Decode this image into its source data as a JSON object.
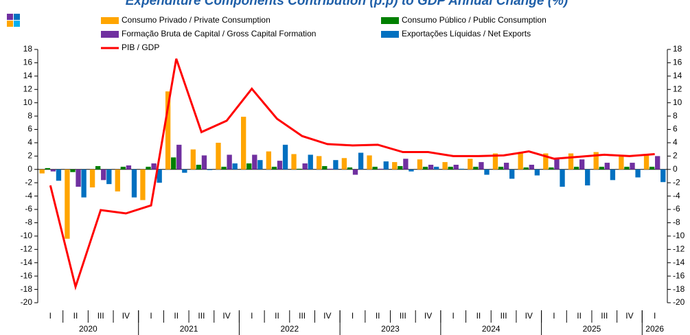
{
  "chart_data": {
    "type": "bar",
    "title": "Expenditure Components Contribution (p.p) to GDP Annual Change (%)",
    "categories": [
      "I",
      "II",
      "III",
      "IV",
      "I",
      "II",
      "III",
      "IV",
      "I",
      "II",
      "III",
      "IV",
      "I",
      "II",
      "III",
      "IV",
      "I",
      "II",
      "III",
      "IV",
      "I",
      "II",
      "III",
      "IV",
      "I"
    ],
    "years": [
      "2020",
      "2021",
      "2022",
      "2023",
      "2024",
      "2025",
      "2026"
    ],
    "series": [
      {
        "name": "Consumo Privado / Private Consumption",
        "color": "#ffa500",
        "values": [
          -0.6,
          -10.4,
          -2.7,
          -3.3,
          -4.6,
          11.7,
          3.0,
          4.0,
          7.9,
          2.7,
          2.3,
          2.0,
          1.7,
          2.1,
          1.1,
          1.5,
          1.1,
          1.6,
          2.4,
          2.5,
          2.4,
          2.4,
          2.6,
          2.1,
          2.2
        ]
      },
      {
        "name": "Consumo Público / Public Consumption",
        "color": "#008000",
        "values": [
          0.2,
          -0.4,
          0.5,
          0.4,
          0.4,
          1.8,
          0.7,
          0.4,
          0.9,
          0.4,
          0.1,
          0.5,
          0.3,
          0.4,
          0.5,
          0.4,
          0.4,
          0.4,
          0.4,
          0.3,
          0.3,
          0.4,
          0.4,
          0.4,
          0.4
        ]
      },
      {
        "name": "Formação Bruta de Capital / Gross Capital Formation",
        "color": "#7030a0",
        "values": [
          -0.3,
          -2.6,
          -1.6,
          0.6,
          0.9,
          3.7,
          2.1,
          2.2,
          2.2,
          1.3,
          0.9,
          0.1,
          -0.8,
          0.1,
          1.6,
          0.7,
          0.7,
          1.1,
          1.0,
          0.7,
          1.6,
          1.5,
          1.0,
          1.0,
          2.0
        ]
      },
      {
        "name": "Exportações Líquidas / Net Exports",
        "color": "#0070c0",
        "values": [
          -1.7,
          -4.2,
          -2.2,
          -4.2,
          -2.0,
          -0.5,
          -0.1,
          0.9,
          1.4,
          3.7,
          2.2,
          1.4,
          2.5,
          1.2,
          -0.3,
          0.4,
          0.1,
          -0.8,
          -1.4,
          -0.9,
          -2.6,
          -2.4,
          -1.6,
          -1.2,
          -1.9
        ]
      },
      {
        "name": "PIB / GDP",
        "color": "#ff0000",
        "type": "line",
        "values": [
          -2.4,
          -17.6,
          -6.1,
          -6.6,
          -5.4,
          16.6,
          5.6,
          7.3,
          12.1,
          7.6,
          5.0,
          3.8,
          3.6,
          3.7,
          2.6,
          2.6,
          2.0,
          2.0,
          2.1,
          2.7,
          1.6,
          1.9,
          2.2,
          2.0,
          2.3
        ]
      }
    ],
    "ylim": [
      -20,
      18
    ],
    "yticks": [
      -20,
      -18,
      -16,
      -14,
      -12,
      -10,
      -8,
      -6,
      -4,
      -2,
      0,
      2,
      4,
      6,
      8,
      10,
      12,
      14,
      16,
      18
    ],
    "y2lim": [
      -20,
      18
    ],
    "y2ticks": [
      -20,
      -18,
      -16,
      -14,
      -12,
      -10,
      -8,
      -6,
      -4,
      -2,
      0,
      2,
      4,
      6,
      8,
      10,
      12,
      14,
      16,
      18
    ]
  }
}
